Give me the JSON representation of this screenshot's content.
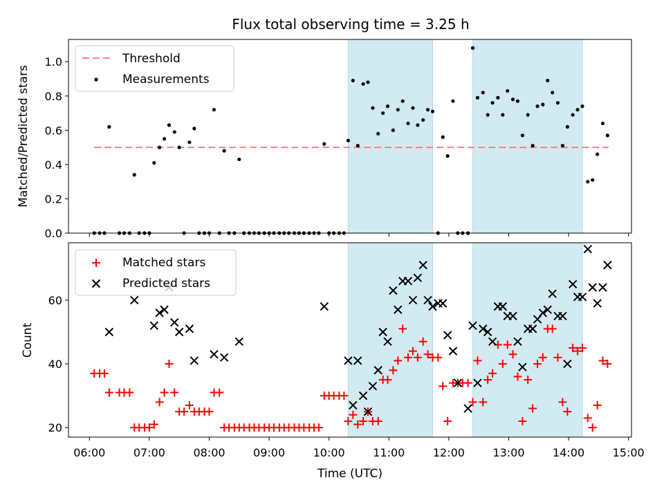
{
  "chart_data": [
    {
      "type": "scatter",
      "title": "Flux total observing time = 3.25 h",
      "ylabel": "Matched/Predicted stars",
      "xlim": [
        5.65,
        15.05
      ],
      "ylim": [
        0,
        1.13
      ],
      "yticks": [
        {
          "v": 0.0,
          "label": "0.0"
        },
        {
          "v": 0.2,
          "label": "0.2"
        },
        {
          "v": 0.4,
          "label": "0.4"
        },
        {
          "v": 0.6,
          "label": "0.6"
        },
        {
          "v": 0.8,
          "label": "0.8"
        },
        {
          "v": 1.0,
          "label": "1.0"
        }
      ],
      "legend_position": "top-left",
      "shaded_intervals_hours": [
        [
          10.32,
          11.73
        ],
        [
          12.4,
          14.23
        ]
      ],
      "shade_color": "#add8e6",
      "threshold": {
        "name": "Threshold",
        "value": 0.5,
        "x_range": [
          6.08,
          14.67
        ],
        "color": "#ff7f7f"
      },
      "series": [
        {
          "name": "Measurements",
          "color": "#000000",
          "x": [
            6.08,
            6.17,
            6.25,
            6.33,
            6.5,
            6.58,
            6.67,
            6.75,
            6.83,
            6.92,
            7.0,
            7.08,
            7.17,
            7.25,
            7.33,
            7.42,
            7.5,
            7.58,
            7.67,
            7.75,
            7.83,
            7.92,
            8.0,
            8.08,
            8.17,
            8.25,
            8.33,
            8.42,
            8.5,
            8.58,
            8.67,
            8.75,
            8.83,
            8.92,
            9.0,
            9.08,
            9.17,
            9.25,
            9.33,
            9.42,
            9.5,
            9.58,
            9.67,
            9.75,
            9.83,
            9.92,
            10.0,
            10.08,
            10.17,
            10.25,
            10.32,
            10.4,
            10.48,
            10.57,
            10.65,
            10.73,
            10.82,
            10.9,
            10.98,
            11.07,
            11.15,
            11.23,
            11.32,
            11.4,
            11.48,
            11.57,
            11.65,
            11.73,
            11.82,
            11.9,
            11.98,
            12.07,
            12.15,
            12.23,
            12.32,
            12.4,
            12.48,
            12.57,
            12.65,
            12.73,
            12.82,
            12.9,
            12.98,
            13.07,
            13.15,
            13.23,
            13.32,
            13.4,
            13.48,
            13.57,
            13.65,
            13.73,
            13.82,
            13.9,
            13.98,
            14.07,
            14.15,
            14.23,
            14.32,
            14.4,
            14.48,
            14.57,
            14.65
          ],
          "y": [
            0,
            0,
            0,
            0.62,
            0,
            0,
            0,
            0.34,
            0,
            0,
            0,
            0.41,
            0.5,
            0.55,
            0.63,
            0.59,
            0.5,
            0,
            0.53,
            0.61,
            0,
            0,
            0,
            0.72,
            0,
            0.48,
            0,
            0,
            0.43,
            0,
            0,
            0,
            0,
            0,
            0,
            0,
            0,
            0,
            0,
            0,
            0,
            0,
            0,
            0,
            0,
            0.52,
            0,
            0,
            0,
            0,
            0.54,
            0.89,
            0.51,
            0.87,
            0.88,
            0.73,
            0.58,
            0.7,
            0.74,
            0.6,
            0.72,
            0.77,
            0.64,
            0.73,
            0.63,
            0.66,
            0.72,
            0.71,
            0,
            0.56,
            0.45,
            0.77,
            0,
            0,
            0,
            1.08,
            0.79,
            0.82,
            0.69,
            0.76,
            0.79,
            0.69,
            0.83,
            0.78,
            0.77,
            0.57,
            0.69,
            0.51,
            0.74,
            0.75,
            0.89,
            0.82,
            0.76,
            0.51,
            0.62,
            0.69,
            0.72,
            0.74,
            0.3,
            0.31,
            0.46,
            0.64,
            0.57
          ]
        }
      ]
    },
    {
      "type": "scatter",
      "xlabel": "Time (UTC)",
      "ylabel": "Count",
      "xlim": [
        5.65,
        15.05
      ],
      "ylim": [
        17,
        78
      ],
      "xticks": [
        {
          "v": 6,
          "label": "06:00"
        },
        {
          "v": 7,
          "label": "07:00"
        },
        {
          "v": 8,
          "label": "08:00"
        },
        {
          "v": 9,
          "label": "09:00"
        },
        {
          "v": 10,
          "label": "10:00"
        },
        {
          "v": 11,
          "label": "11:00"
        },
        {
          "v": 12,
          "label": "12:00"
        },
        {
          "v": 13,
          "label": "13:00"
        },
        {
          "v": 14,
          "label": "14:00"
        },
        {
          "v": 15,
          "label": "15:00"
        }
      ],
      "yticks": [
        {
          "v": 20,
          "label": "20"
        },
        {
          "v": 40,
          "label": "40"
        },
        {
          "v": 60,
          "label": "60"
        }
      ],
      "legend_position": "top-left",
      "shaded_intervals_hours": [
        [
          10.32,
          11.73
        ],
        [
          12.4,
          14.23
        ]
      ],
      "shade_color": "#add8e6",
      "series": [
        {
          "name": "Matched stars",
          "marker": "plus",
          "color": "#ff0000",
          "x": [
            6.08,
            6.17,
            6.25,
            6.33,
            6.5,
            6.58,
            6.67,
            6.75,
            6.83,
            6.92,
            7.0,
            7.08,
            7.17,
            7.25,
            7.33,
            7.42,
            7.5,
            7.58,
            7.67,
            7.75,
            7.83,
            7.92,
            8.0,
            8.08,
            8.17,
            8.25,
            8.33,
            8.42,
            8.5,
            8.58,
            8.67,
            8.75,
            8.83,
            8.92,
            9.0,
            9.08,
            9.17,
            9.25,
            9.33,
            9.42,
            9.5,
            9.58,
            9.67,
            9.75,
            9.83,
            9.92,
            10.0,
            10.08,
            10.17,
            10.25,
            10.32,
            10.4,
            10.48,
            10.57,
            10.65,
            10.73,
            10.82,
            10.9,
            10.98,
            11.07,
            11.15,
            11.23,
            11.32,
            11.4,
            11.48,
            11.57,
            11.65,
            11.73,
            11.82,
            11.9,
            11.98,
            12.07,
            12.15,
            12.23,
            12.32,
            12.4,
            12.48,
            12.57,
            12.65,
            12.73,
            12.82,
            12.9,
            12.98,
            13.07,
            13.15,
            13.23,
            13.32,
            13.4,
            13.48,
            13.57,
            13.65,
            13.73,
            13.82,
            13.9,
            13.98,
            14.07,
            14.15,
            14.23,
            14.32,
            14.4,
            14.48,
            14.57,
            14.65
          ],
          "y": [
            37,
            37,
            37,
            31,
            31,
            31,
            31,
            20,
            20,
            20,
            20,
            21,
            28,
            31,
            40,
            31,
            25,
            25,
            27,
            25,
            25,
            25,
            25,
            31,
            31,
            20,
            20,
            20,
            20,
            20,
            20,
            20,
            20,
            20,
            20,
            20,
            20,
            20,
            20,
            20,
            20,
            20,
            20,
            20,
            20,
            30,
            30,
            30,
            30,
            30,
            22,
            24,
            21,
            22,
            25,
            22,
            22,
            35,
            35,
            38,
            41,
            51,
            42,
            44,
            42,
            47,
            43,
            42,
            42,
            33,
            22,
            34,
            34,
            34,
            34,
            28,
            41,
            28,
            35,
            37,
            46,
            40,
            46,
            43,
            36,
            22,
            35,
            26,
            40,
            42,
            51,
            51,
            42,
            28,
            25,
            45,
            44,
            45,
            23,
            20,
            27,
            41,
            40
          ]
        },
        {
          "name": "Predicted stars",
          "marker": "x",
          "color": "#000000",
          "x": [
            6.33,
            6.75,
            7.08,
            7.17,
            7.25,
            7.33,
            7.42,
            7.5,
            7.67,
            7.75,
            8.08,
            8.25,
            8.5,
            9.92,
            10.32,
            10.4,
            10.48,
            10.57,
            10.65,
            10.73,
            10.82,
            10.9,
            10.98,
            11.07,
            11.15,
            11.23,
            11.32,
            11.4,
            11.48,
            11.57,
            11.65,
            11.73,
            11.82,
            11.9,
            11.98,
            12.07,
            12.15,
            12.32,
            12.4,
            12.48,
            12.57,
            12.65,
            12.73,
            12.82,
            12.9,
            12.98,
            13.07,
            13.15,
            13.23,
            13.32,
            13.4,
            13.48,
            13.57,
            13.65,
            13.73,
            13.82,
            13.9,
            13.98,
            14.07,
            14.15,
            14.23,
            14.32,
            14.4,
            14.48,
            14.57,
            14.65
          ],
          "y": [
            50,
            60,
            52,
            56,
            57,
            64,
            53,
            50,
            51,
            41,
            43,
            42,
            47,
            58,
            41,
            27,
            41,
            30,
            25,
            33,
            38,
            50,
            47,
            63,
            57,
            66,
            66,
            60,
            67,
            71,
            60,
            58,
            59,
            59,
            49,
            44,
            34,
            26,
            52,
            34,
            51,
            50,
            47,
            58,
            58,
            55,
            55,
            47,
            39,
            51,
            51,
            54,
            56,
            57,
            62,
            55,
            55,
            40,
            65,
            61,
            61,
            76,
            64,
            59,
            64,
            71
          ]
        }
      ]
    }
  ]
}
